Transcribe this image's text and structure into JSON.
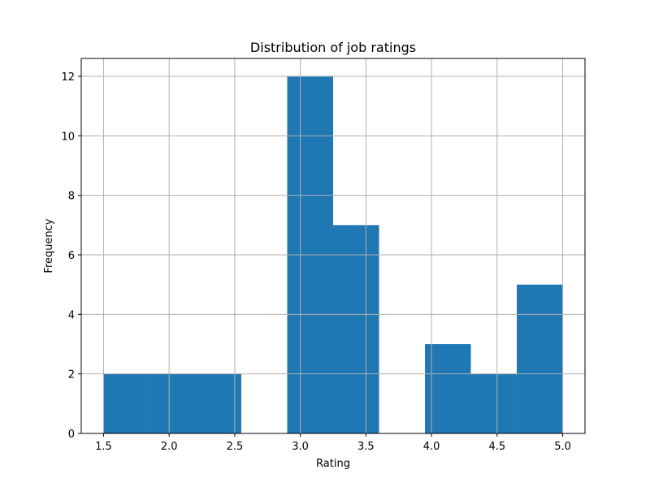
{
  "chart_data": {
    "type": "bar",
    "title": "Distribution of job ratings",
    "xlabel": "Rating",
    "ylabel": "Frequency",
    "bin_edges": [
      1.5,
      1.85,
      2.2,
      2.55,
      2.9,
      3.25,
      3.6,
      3.95,
      4.3,
      4.65,
      5.0
    ],
    "values": [
      2,
      2,
      2,
      0,
      12,
      7,
      0,
      3,
      2,
      5
    ],
    "xlim": [
      1.33,
      5.17
    ],
    "ylim": [
      0,
      12.6
    ],
    "xticks": [
      1.5,
      2.0,
      2.5,
      3.0,
      3.5,
      4.0,
      4.5,
      5.0
    ],
    "xtick_labels": [
      "1.5",
      "2.0",
      "2.5",
      "3.0",
      "3.5",
      "4.0",
      "4.5",
      "5.0"
    ],
    "yticks": [
      0,
      2,
      4,
      6,
      8,
      10,
      12
    ],
    "ytick_labels": [
      "0",
      "2",
      "4",
      "6",
      "8",
      "10",
      "12"
    ],
    "grid": true,
    "bar_color": "#1f77b4"
  }
}
